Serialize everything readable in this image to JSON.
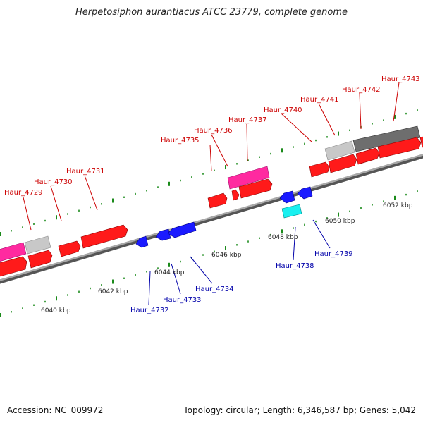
{
  "title": "Herpetosiphon aurantiacus ATCC 23779, complete genome",
  "footer": {
    "accession": "Accession: NC_009972",
    "topology": "Topology: circular; Length: 6,346,587 bp; Genes: 5,042"
  },
  "colors": {
    "forward_gene": "#ff1a1a",
    "reverse_gene": "#1a1aff",
    "pink_feature": "#ff2aa0",
    "cyan_feature": "#19f0f0",
    "light_gray_feature": "#c8c8c8",
    "dark_gray_feature": "#6e6e6e",
    "backbone": "#8a8a8a",
    "tick": "#1a8a1a",
    "forward_label": "#cc0000",
    "reverse_label": "#0000aa"
  },
  "scale_labels": [
    "6040 kbp",
    "6042 kbp",
    "6044 kbp",
    "6046 kbp",
    "6048 kbp",
    "6050 kbp",
    "6052 kbp"
  ],
  "forward_labels": [
    "Haur_4729",
    "Haur_4730",
    "Haur_4731",
    "Haur_4735",
    "Haur_4736",
    "Haur_4737",
    "Haur_4740",
    "Haur_4741",
    "Haur_4742",
    "Haur_4743"
  ],
  "reverse_labels": [
    "Haur_4732",
    "Haur_4733",
    "Haur_4734",
    "Haur_4738",
    "Haur_4739"
  ]
}
